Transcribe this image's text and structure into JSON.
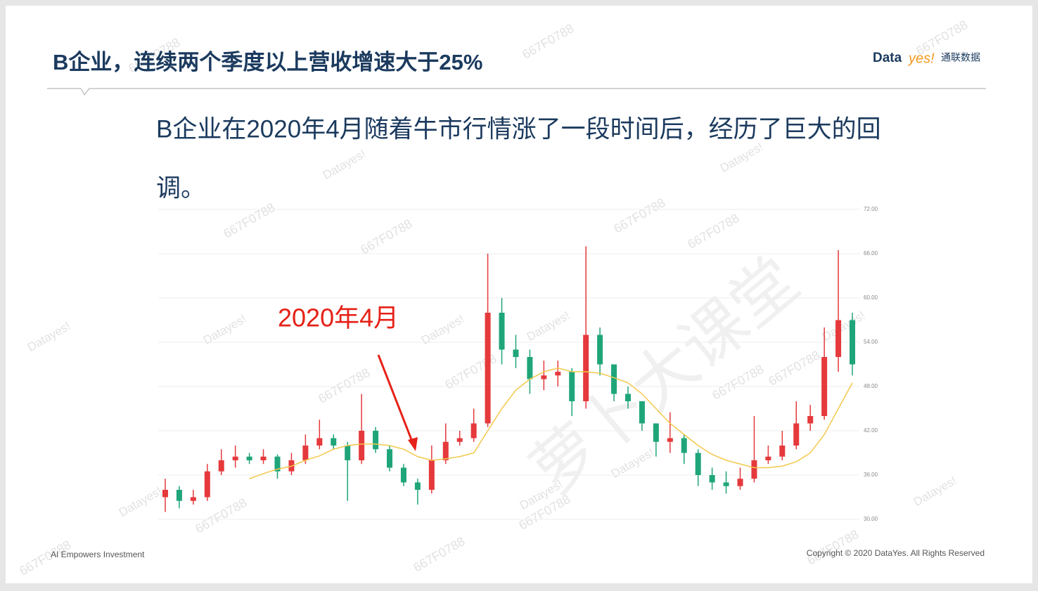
{
  "header": {
    "title": "B企业，连续两个季度以上营收增速大于25%",
    "logo_a": "Data",
    "logo_b": "yes!",
    "logo_c": "通联数据"
  },
  "body_text": [
    "B企业在2020年4月随着牛市行情涨了一段时间后，经历了巨大的回",
    "调。"
  ],
  "footer": {
    "left": "AI Empowers Investment",
    "right": "Copyright © 2020 DataYes. All Rights Reserved"
  },
  "watermarks": [
    "萝卜大课堂",
    "Datayes!",
    "667F0788"
  ],
  "chart_data": {
    "type": "candlestick",
    "annotation": "2020年4月",
    "up_color": "#e5393c",
    "down_color": "#1fa57a",
    "open": [
      33,
      34,
      32.5,
      33,
      36.5,
      38,
      38.5,
      38,
      38.5,
      36.5,
      38,
      40,
      41,
      40,
      38,
      42,
      39.5,
      37,
      35,
      34,
      38,
      40.5,
      41,
      43,
      58,
      53,
      52,
      49,
      49.5,
      50,
      46,
      55,
      51,
      47,
      46,
      43,
      40.5,
      41,
      39,
      36,
      35,
      34.5,
      35.5,
      38,
      38.5,
      40,
      43,
      44,
      52,
      57
    ],
    "high": [
      35.5,
      34.5,
      34,
      37.5,
      39.5,
      40,
      39,
      39.5,
      38.8,
      39,
      41.5,
      43.5,
      41.5,
      40.5,
      47,
      42.5,
      40,
      37.5,
      35.5,
      40,
      43,
      42,
      45,
      66,
      60,
      55,
      53,
      51.5,
      51.5,
      50.5,
      67,
      56,
      51,
      48,
      46,
      43,
      44.5,
      41.5,
      39.5,
      37,
      36.5,
      37,
      44,
      40,
      42,
      46,
      45.5,
      56,
      66.5,
      58
    ],
    "low": [
      31,
      31.5,
      32,
      32.5,
      36,
      37,
      37.5,
      37.5,
      35.5,
      36,
      37.5,
      39.5,
      39.5,
      32.5,
      37.5,
      39,
      36.5,
      34.5,
      32,
      33.5,
      37.5,
      40,
      40.5,
      42.5,
      51,
      50.5,
      47,
      47.5,
      48,
      44,
      45,
      49.5,
      46,
      45,
      42,
      38.5,
      39,
      37.5,
      34.5,
      34,
      33.5,
      34,
      35,
      37.5,
      38,
      39.5,
      42,
      43.5,
      50,
      49.5
    ],
    "close": [
      34,
      32.5,
      33,
      36.5,
      38,
      38.5,
      38,
      38.5,
      36.5,
      38,
      40,
      41,
      40,
      38,
      42,
      39.5,
      37,
      35,
      34,
      38,
      40.5,
      41,
      43,
      58,
      53,
      52,
      49,
      49.5,
      50,
      46,
      55,
      51,
      47,
      46,
      43,
      40.5,
      41,
      39,
      36,
      35,
      34.5,
      35.5,
      38,
      38.5,
      40,
      43,
      44,
      52,
      57,
      51
    ],
    "ma": {
      "color": "#f2c94c",
      "values": [
        null,
        null,
        null,
        null,
        null,
        null,
        35.5,
        36.2,
        36.8,
        37.2,
        38,
        38.6,
        39.5,
        40,
        40.2,
        40.2,
        40,
        39.5,
        38.5,
        38,
        38.2,
        38.5,
        39,
        42,
        45,
        47.5,
        49,
        50,
        50.5,
        50,
        50,
        49.8,
        49.2,
        48.5,
        47,
        45,
        43,
        41.5,
        40,
        38.8,
        38,
        37.5,
        37,
        37,
        37.2,
        37.8,
        39,
        41.5,
        45,
        48.5
      ]
    },
    "ylim": [
      30,
      72
    ],
    "yticks": [
      {
        "value": 30,
        "label": "30.00"
      },
      {
        "value": 36,
        "label": "36.00"
      },
      {
        "value": 42,
        "label": "42.00"
      },
      {
        "value": 48,
        "label": "48.00"
      },
      {
        "value": 54,
        "label": "54.00"
      },
      {
        "value": 60,
        "label": "60.00"
      },
      {
        "value": 66,
        "label": "66.00"
      },
      {
        "value": 72,
        "label": "72.00"
      }
    ],
    "grid": true
  }
}
